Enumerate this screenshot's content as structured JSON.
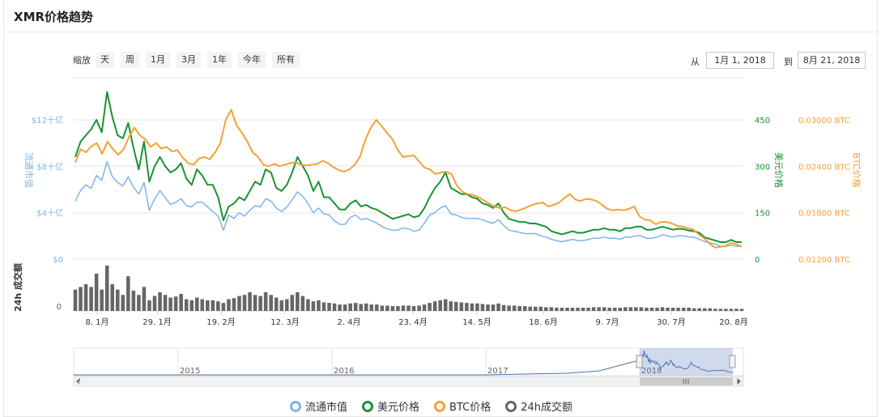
{
  "title": "XMR价格趋势",
  "zoom": {
    "label": "缩放",
    "buttons": [
      "天",
      "周",
      "1月",
      "3月",
      "1年",
      "今年",
      "所有"
    ]
  },
  "range": {
    "from_label": "从",
    "from_value": "1月 1, 2018",
    "to_label": "到",
    "to_value": "8月 21, 2018"
  },
  "legend": [
    {
      "label": "流通市值",
      "color": "#7cb5ec"
    },
    {
      "label": "美元价格",
      "color": "#1a9331"
    },
    {
      "label": "BTC价格",
      "color": "#f5a133"
    },
    {
      "label": "24h成交额",
      "color": "#666666"
    }
  ],
  "chart_data": {
    "type": "line",
    "x_ticks": [
      "8. 1月",
      "29. 1月",
      "19. 2月",
      "12. 3月",
      "2. 4月",
      "23. 4月",
      "14. 5月",
      "18. 6月",
      "9. 7月",
      "30. 7月",
      "20. 8月"
    ],
    "y_axes": {
      "market_cap": {
        "label": "流通市值",
        "ticks": [
          "$0",
          "$4十亿",
          "$8十亿",
          "$12十亿"
        ],
        "range": [
          0,
          12
        ]
      },
      "usd": {
        "label": "美元价格",
        "ticks": [
          "0",
          "150",
          "300",
          "450"
        ],
        "range": [
          0,
          450
        ]
      },
      "btc": {
        "label": "BTC价格",
        "ticks": [
          "0.01200 BTC",
          "0.01800 BTC",
          "0.02400 BTC",
          "0.03000 BTC"
        ],
        "range": [
          0.012,
          0.03
        ]
      },
      "volume": {
        "label": "24h 成交额",
        "ticks": [
          "0"
        ]
      }
    },
    "series": [
      {
        "name": "流通市值",
        "color": "#7cb5ec",
        "axis": "market_cap",
        "values": [
          5.0,
          5.9,
          6.4,
          6.1,
          7.2,
          6.8,
          8.4,
          7.1,
          6.6,
          6.3,
          7.1,
          6.2,
          5.6,
          6.6,
          4.2,
          5.2,
          5.9,
          5.3,
          4.7,
          4.9,
          5.2,
          4.6,
          4.5,
          4.9,
          4.9,
          4.5,
          4.1,
          3.7,
          2.5,
          3.8,
          3.5,
          4.0,
          3.7,
          4.2,
          4.6,
          4.5,
          5.2,
          5.0,
          4.4,
          4.1,
          4.5,
          5.1,
          5.8,
          5.4,
          4.8,
          4.0,
          4.4,
          3.9,
          3.8,
          3.3,
          3.0,
          3.0,
          3.6,
          3.8,
          3.4,
          3.5,
          3.3,
          3.1,
          2.8,
          2.6,
          2.5,
          2.5,
          2.7,
          2.6,
          2.4,
          2.5,
          3.1,
          3.8,
          4.0,
          4.4,
          4.6,
          3.9,
          3.8,
          3.6,
          3.5,
          3.5,
          3.5,
          3.4,
          3.2,
          3.1,
          3.4,
          2.9,
          2.5,
          2.4,
          2.3,
          2.2,
          2.2,
          2.2,
          2.0,
          1.9,
          1.7,
          1.6,
          1.5,
          1.6,
          1.7,
          1.6,
          1.6,
          1.7,
          1.8,
          1.8,
          1.9,
          1.8,
          1.8,
          1.7,
          1.9,
          1.9,
          2.0,
          2.0,
          1.8,
          1.8,
          1.9,
          2.1,
          2.0,
          1.9,
          2.0,
          2.0,
          1.9,
          1.9,
          1.7,
          1.5,
          1.4,
          1.3,
          1.1,
          1.1,
          1.2,
          1.1,
          1.1
        ]
      },
      {
        "name": "美元价格",
        "color": "#1a9331",
        "axis": "usd",
        "values": [
          330,
          380,
          400,
          420,
          450,
          410,
          540,
          460,
          400,
          390,
          440,
          360,
          290,
          380,
          250,
          300,
          330,
          300,
          280,
          290,
          310,
          260,
          240,
          290,
          270,
          240,
          240,
          200,
          125,
          170,
          180,
          200,
          190,
          220,
          250,
          240,
          290,
          280,
          230,
          220,
          240,
          280,
          330,
          300,
          270,
          220,
          250,
          200,
          200,
          180,
          160,
          160,
          180,
          190,
          170,
          175,
          165,
          160,
          150,
          140,
          130,
          135,
          140,
          145,
          135,
          140,
          165,
          200,
          230,
          250,
          280,
          230,
          220,
          210,
          210,
          200,
          195,
          180,
          175,
          165,
          180,
          150,
          130,
          125,
          120,
          120,
          115,
          115,
          110,
          105,
          90,
          85,
          80,
          85,
          90,
          85,
          85,
          90,
          95,
          95,
          100,
          95,
          95,
          90,
          100,
          100,
          105,
          105,
          95,
          95,
          100,
          105,
          100,
          95,
          98,
          97,
          92,
          90,
          85,
          70,
          65,
          60,
          55,
          55,
          62,
          55,
          55
        ]
      },
      {
        "name": "BTC价格",
        "color": "#f5a133",
        "axis": "btc",
        "values": [
          0.0245,
          0.0262,
          0.0258,
          0.0266,
          0.027,
          0.0256,
          0.0272,
          0.0262,
          0.0255,
          0.0262,
          0.0278,
          0.029,
          0.028,
          0.0275,
          0.0265,
          0.027,
          0.0263,
          0.0265,
          0.0259,
          0.0261,
          0.0251,
          0.0244,
          0.0242,
          0.025,
          0.0252,
          0.0249,
          0.0258,
          0.027,
          0.03,
          0.0313,
          0.0293,
          0.0283,
          0.0272,
          0.0258,
          0.0252,
          0.0242,
          0.024,
          0.0243,
          0.024,
          0.0242,
          0.0244,
          0.0245,
          0.0242,
          0.0241,
          0.0242,
          0.0243,
          0.0247,
          0.0244,
          0.0239,
          0.0235,
          0.0233,
          0.0236,
          0.0242,
          0.0253,
          0.0275,
          0.029,
          0.03,
          0.0292,
          0.0283,
          0.0275,
          0.0261,
          0.0252,
          0.0253,
          0.0254,
          0.0246,
          0.0238,
          0.0236,
          0.023,
          0.0232,
          0.0233,
          0.023,
          0.0215,
          0.0207,
          0.0204,
          0.0203,
          0.02,
          0.0196,
          0.0192,
          0.0188,
          0.0186,
          0.0187,
          0.0183,
          0.0182,
          0.0184,
          0.0187,
          0.019,
          0.0192,
          0.0193,
          0.0188,
          0.019,
          0.0193,
          0.0199,
          0.0204,
          0.0197,
          0.0195,
          0.0198,
          0.0197,
          0.0195,
          0.019,
          0.0185,
          0.0183,
          0.0184,
          0.0183,
          0.0185,
          0.0188,
          0.0175,
          0.0171,
          0.017,
          0.0165,
          0.0168,
          0.0168,
          0.0166,
          0.0163,
          0.0162,
          0.016,
          0.0158,
          0.0152,
          0.0147,
          0.014,
          0.0135,
          0.0136,
          0.0137,
          0.0141,
          0.0139,
          0.0136
        ]
      },
      {
        "name": "24h成交额",
        "color": "#666666",
        "axis": "volume",
        "values": [
          40,
          45,
          50,
          45,
          70,
          40,
          85,
          50,
          40,
          30,
          65,
          38,
          30,
          45,
          20,
          28,
          35,
          30,
          25,
          27,
          32,
          22,
          20,
          25,
          22,
          20,
          20,
          18,
          15,
          22,
          24,
          28,
          30,
          35,
          30,
          28,
          35,
          30,
          25,
          20,
          22,
          30,
          35,
          28,
          22,
          18,
          20,
          16,
          15,
          14,
          12,
          12,
          14,
          15,
          13,
          14,
          12,
          12,
          10,
          10,
          9,
          9,
          10,
          10,
          9,
          10,
          12,
          15,
          18,
          20,
          22,
          18,
          17,
          16,
          15,
          14,
          14,
          13,
          12,
          12,
          14,
          11,
          10,
          10,
          9,
          9,
          8,
          8,
          8,
          7,
          7,
          6,
          6,
          6,
          6,
          6,
          6,
          6,
          7,
          7,
          7,
          6,
          6,
          6,
          7,
          7,
          7,
          7,
          6,
          6,
          6,
          7,
          6,
          6,
          6,
          6,
          6,
          5,
          5,
          5,
          5,
          4,
          4,
          4,
          4,
          4,
          4
        ]
      }
    ],
    "navigator": {
      "x_ticks": [
        "2015",
        "2016",
        "2017",
        "2018"
      ]
    }
  }
}
